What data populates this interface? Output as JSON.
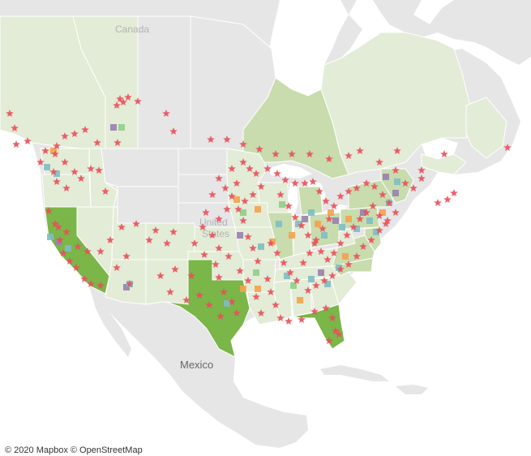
{
  "map": {
    "labels": {
      "canada": "Canada",
      "united_states_line1": "United",
      "united_states_line2": "States",
      "mexico": "Mexico"
    },
    "attribution": "© 2020 Mapbox © OpenStreetMap"
  },
  "colors": {
    "water": "#ffffff",
    "land": "#e6e6e6",
    "region_border": "#ffffff",
    "shade_light": "#e3ecd6",
    "shade_mid": "#c8dcae",
    "shade_strong": "#7ab648",
    "star": "#e8505b",
    "square_orange": "#f5a24b",
    "square_teal": "#7fbcc3",
    "square_purple": "#9a7fb0",
    "square_green": "#8fcf8a"
  },
  "legend_encoding": {
    "shaded_regions": "fill intensity by region",
    "star_markers": "star",
    "square_markers": "square"
  }
}
